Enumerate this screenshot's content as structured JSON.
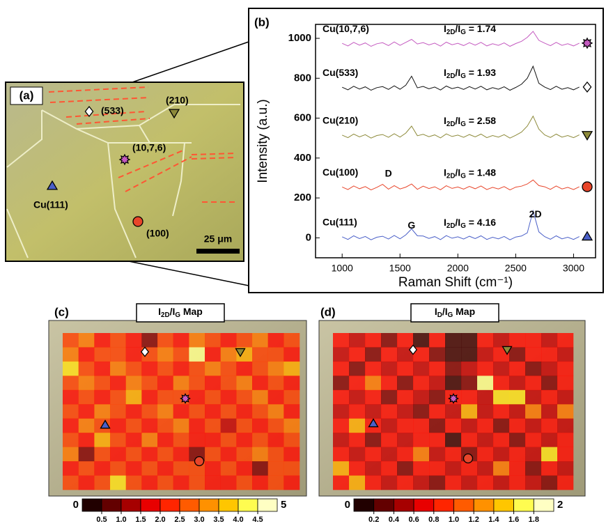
{
  "panel_a": {
    "label": "(a)",
    "grains": [
      "(533)",
      "(210)",
      "(10,7,6)",
      "Cu(111)",
      "(100)"
    ],
    "scale_bar": "25 μm"
  },
  "chart_data": [
    {
      "type": "line",
      "panel": "(b)",
      "xlabel": "Raman Shift (cm⁻¹)",
      "ylabel": "Intensity (a.u.)",
      "x": [
        1000,
        1050,
        1100,
        1150,
        1200,
        1250,
        1300,
        1350,
        1400,
        1450,
        1500,
        1550,
        1600,
        1650,
        1700,
        1750,
        1800,
        1850,
        1900,
        1950,
        2000,
        2050,
        2100,
        2150,
        2200,
        2250,
        2300,
        2350,
        2400,
        2450,
        2500,
        2550,
        2600,
        2650,
        2700,
        2750,
        2800,
        2850,
        2900,
        2950,
        3000,
        3050
      ],
      "xlim": [
        770,
        3190
      ],
      "ylim": [
        -100,
        1070
      ],
      "xticks": [
        1000,
        1500,
        2000,
        2500,
        3000
      ],
      "yticks": [
        0,
        200,
        400,
        600,
        800,
        1000
      ],
      "series": [
        {
          "name": "Cu(10,7,6)",
          "color": "#c45ac0",
          "annotation": "I2D/IG = 1.74",
          "values": [
            975,
            962,
            980,
            966,
            977,
            960,
            973,
            978,
            964,
            982,
            965,
            980,
            995,
            972,
            979,
            967,
            976,
            961,
            981,
            968,
            975,
            964,
            978,
            966,
            980,
            962,
            973,
            965,
            977,
            960,
            974,
            985,
            1005,
            1035,
            990,
            976,
            963,
            980,
            965,
            973,
            962,
            976
          ]
        },
        {
          "name": "Cu(533)",
          "color": "#111111",
          "annotation": "I2D/IG = 1.93",
          "values": [
            755,
            742,
            760,
            746,
            757,
            740,
            753,
            758,
            744,
            762,
            745,
            765,
            810,
            752,
            759,
            747,
            756,
            741,
            761,
            748,
            755,
            744,
            758,
            746,
            760,
            742,
            753,
            745,
            757,
            740,
            754,
            770,
            800,
            860,
            775,
            756,
            743,
            760,
            745,
            753,
            742,
            756
          ]
        },
        {
          "name": "Cu(210)",
          "color": "#8d8a3a",
          "annotation": "I2D/IG = 2.58",
          "values": [
            515,
            502,
            520,
            506,
            517,
            500,
            513,
            518,
            504,
            522,
            505,
            525,
            560,
            512,
            519,
            507,
            516,
            501,
            521,
            508,
            515,
            504,
            518,
            506,
            520,
            502,
            513,
            505,
            517,
            500,
            514,
            530,
            560,
            610,
            545,
            516,
            503,
            520,
            505,
            513,
            502,
            516
          ]
        },
        {
          "name": "Cu(100)",
          "color": "#e8452a",
          "annotation": "I2D/IG = 1.48",
          "values": [
            255,
            242,
            260,
            246,
            257,
            240,
            253,
            268,
            244,
            262,
            245,
            254,
            270,
            243,
            259,
            247,
            256,
            241,
            261,
            248,
            255,
            244,
            258,
            246,
            260,
            242,
            253,
            245,
            257,
            240,
            254,
            259,
            270,
            290,
            262,
            256,
            243,
            260,
            245,
            253,
            242,
            256
          ]
        },
        {
          "name": "Cu(111)",
          "color": "#4a5fc8",
          "annotation": "I2D/IG = 4.16",
          "values": [
            5,
            -8,
            10,
            -4,
            7,
            -10,
            3,
            8,
            -6,
            12,
            -5,
            15,
            45,
            10,
            9,
            -3,
            6,
            -9,
            11,
            -2,
            5,
            -6,
            8,
            -4,
            10,
            -8,
            3,
            -5,
            7,
            -10,
            4,
            9,
            25,
            135,
            30,
            6,
            -7,
            10,
            -5,
            3,
            -8,
            6
          ]
        }
      ],
      "annotations": [
        {
          "text": "D",
          "x": 1400,
          "y": 320
        },
        {
          "text": "G",
          "x": 1600,
          "y": 60
        },
        {
          "text": "2D",
          "x": 2670,
          "y": 115
        }
      ]
    },
    {
      "type": "heatmap",
      "panel": "(c)",
      "title": "I2D/IG Map",
      "zlim": [
        0,
        5
      ],
      "zticks": [
        0.5,
        {
          "value": 1,
          "label": "1.0"
        },
        1.5,
        {
          "value": 2,
          "label": "2.0"
        },
        2.5,
        {
          "value": 3,
          "label": "3.0"
        },
        3.5,
        {
          "value": 4,
          "label": "4.0"
        },
        4.5
      ],
      "values": [
        [
          2.5,
          3.0,
          2.0,
          2.5,
          2.0,
          1.0,
          2.5,
          2.0,
          3.0,
          2.5,
          2.0,
          2.5,
          3.0,
          2.0,
          2.5
        ],
        [
          3.0,
          2.0,
          2.5,
          2.5,
          2.0,
          2.5,
          3.0,
          2.5,
          4.5,
          2.0,
          3.0,
          3.5,
          2.5,
          2.5,
          2.0
        ],
        [
          4.0,
          2.5,
          2.0,
          3.0,
          2.5,
          2.0,
          2.5,
          2.0,
          2.5,
          3.0,
          2.5,
          2.0,
          2.5,
          3.0,
          3.5
        ],
        [
          2.5,
          3.0,
          2.5,
          2.0,
          3.0,
          2.5,
          2.0,
          3.0,
          2.5,
          2.0,
          2.5,
          3.0,
          2.0,
          2.5,
          2.0
        ],
        [
          2.0,
          2.5,
          2.0,
          2.5,
          3.5,
          2.0,
          2.5,
          2.5,
          2.0,
          2.5,
          2.0,
          2.5,
          3.0,
          2.0,
          2.5
        ],
        [
          2.5,
          2.0,
          3.0,
          2.5,
          2.0,
          2.5,
          3.0,
          2.0,
          2.5,
          2.0,
          2.5,
          2.0,
          2.5,
          3.0,
          2.0
        ],
        [
          2.0,
          3.0,
          2.5,
          2.0,
          2.5,
          2.0,
          2.5,
          3.0,
          2.0,
          2.5,
          1.5,
          2.5,
          2.0,
          2.5,
          3.0
        ],
        [
          2.5,
          2.0,
          3.5,
          2.5,
          2.0,
          3.0,
          2.0,
          2.5,
          2.0,
          2.0,
          2.5,
          2.0,
          2.5,
          2.0,
          2.5
        ],
        [
          3.0,
          1.0,
          2.5,
          2.0,
          2.5,
          2.0,
          2.5,
          2.0,
          1.0,
          2.5,
          2.0,
          2.5,
          3.0,
          2.5,
          2.0
        ],
        [
          2.0,
          2.5,
          2.0,
          2.5,
          2.0,
          2.5,
          2.0,
          2.5,
          2.5,
          2.0,
          2.5,
          2.0,
          1.0,
          2.5,
          2.5
        ],
        [
          2.5,
          2.0,
          2.5,
          4.0,
          2.5,
          2.0,
          2.5,
          2.0,
          2.5,
          2.0,
          2.0,
          2.5,
          2.0,
          2.5,
          2.0
        ]
      ]
    },
    {
      "type": "heatmap",
      "panel": "(d)",
      "title": "ID/IG Map",
      "zlim": [
        0,
        2
      ],
      "zticks": [
        0.2,
        0.4,
        0.6,
        0.8,
        {
          "value": 1,
          "label": "1.0"
        },
        1.2,
        1.4,
        1.6,
        1.8
      ],
      "values": [
        [
          0.8,
          0.6,
          0.8,
          0.4,
          0.8,
          0.2,
          0.8,
          0.2,
          0.2,
          0.8,
          0.6,
          0.8,
          0.8,
          0.6,
          0.8
        ],
        [
          0.6,
          0.8,
          0.4,
          0.8,
          0.6,
          0.8,
          0.4,
          0.2,
          0.2,
          0.6,
          0.8,
          0.4,
          0.8,
          0.8,
          0.6
        ],
        [
          0.8,
          0.4,
          0.8,
          0.6,
          0.8,
          0.6,
          0.8,
          0.4,
          0.6,
          0.8,
          0.6,
          0.8,
          0.4,
          0.6,
          0.8
        ],
        [
          0.4,
          0.8,
          1.2,
          0.8,
          0.4,
          0.8,
          0.6,
          0.2,
          0.4,
          1.8,
          0.8,
          0.6,
          0.8,
          0.4,
          0.8
        ],
        [
          0.8,
          0.6,
          0.8,
          0.4,
          0.8,
          0.6,
          0.4,
          0.8,
          0.8,
          0.6,
          1.6,
          1.6,
          0.6,
          0.8,
          0.6
        ],
        [
          0.6,
          0.8,
          0.6,
          0.8,
          0.6,
          0.4,
          0.8,
          0.6,
          1.4,
          0.6,
          0.8,
          0.6,
          1.2,
          0.6,
          1.2
        ],
        [
          0.8,
          1.4,
          0.8,
          0.6,
          0.8,
          0.8,
          0.4,
          0.8,
          0.6,
          0.8,
          0.4,
          0.8,
          0.6,
          0.8,
          0.6
        ],
        [
          0.6,
          0.8,
          0.4,
          0.8,
          0.6,
          0.8,
          0.8,
          0.2,
          0.8,
          0.6,
          0.8,
          0.4,
          0.8,
          0.6,
          0.8
        ],
        [
          0.8,
          0.6,
          0.8,
          0.6,
          0.8,
          1.2,
          0.6,
          0.8,
          0.4,
          0.8,
          0.6,
          0.8,
          0.6,
          1.6,
          0.8
        ],
        [
          1.4,
          0.8,
          0.6,
          0.8,
          0.4,
          0.8,
          0.8,
          0.6,
          0.8,
          0.6,
          1.2,
          0.8,
          0.4,
          0.8,
          0.6
        ],
        [
          0.8,
          1.4,
          0.8,
          0.6,
          0.8,
          0.6,
          0.4,
          0.8,
          0.6,
          0.8,
          0.6,
          0.8,
          0.6,
          0.4,
          0.8
        ]
      ]
    }
  ]
}
